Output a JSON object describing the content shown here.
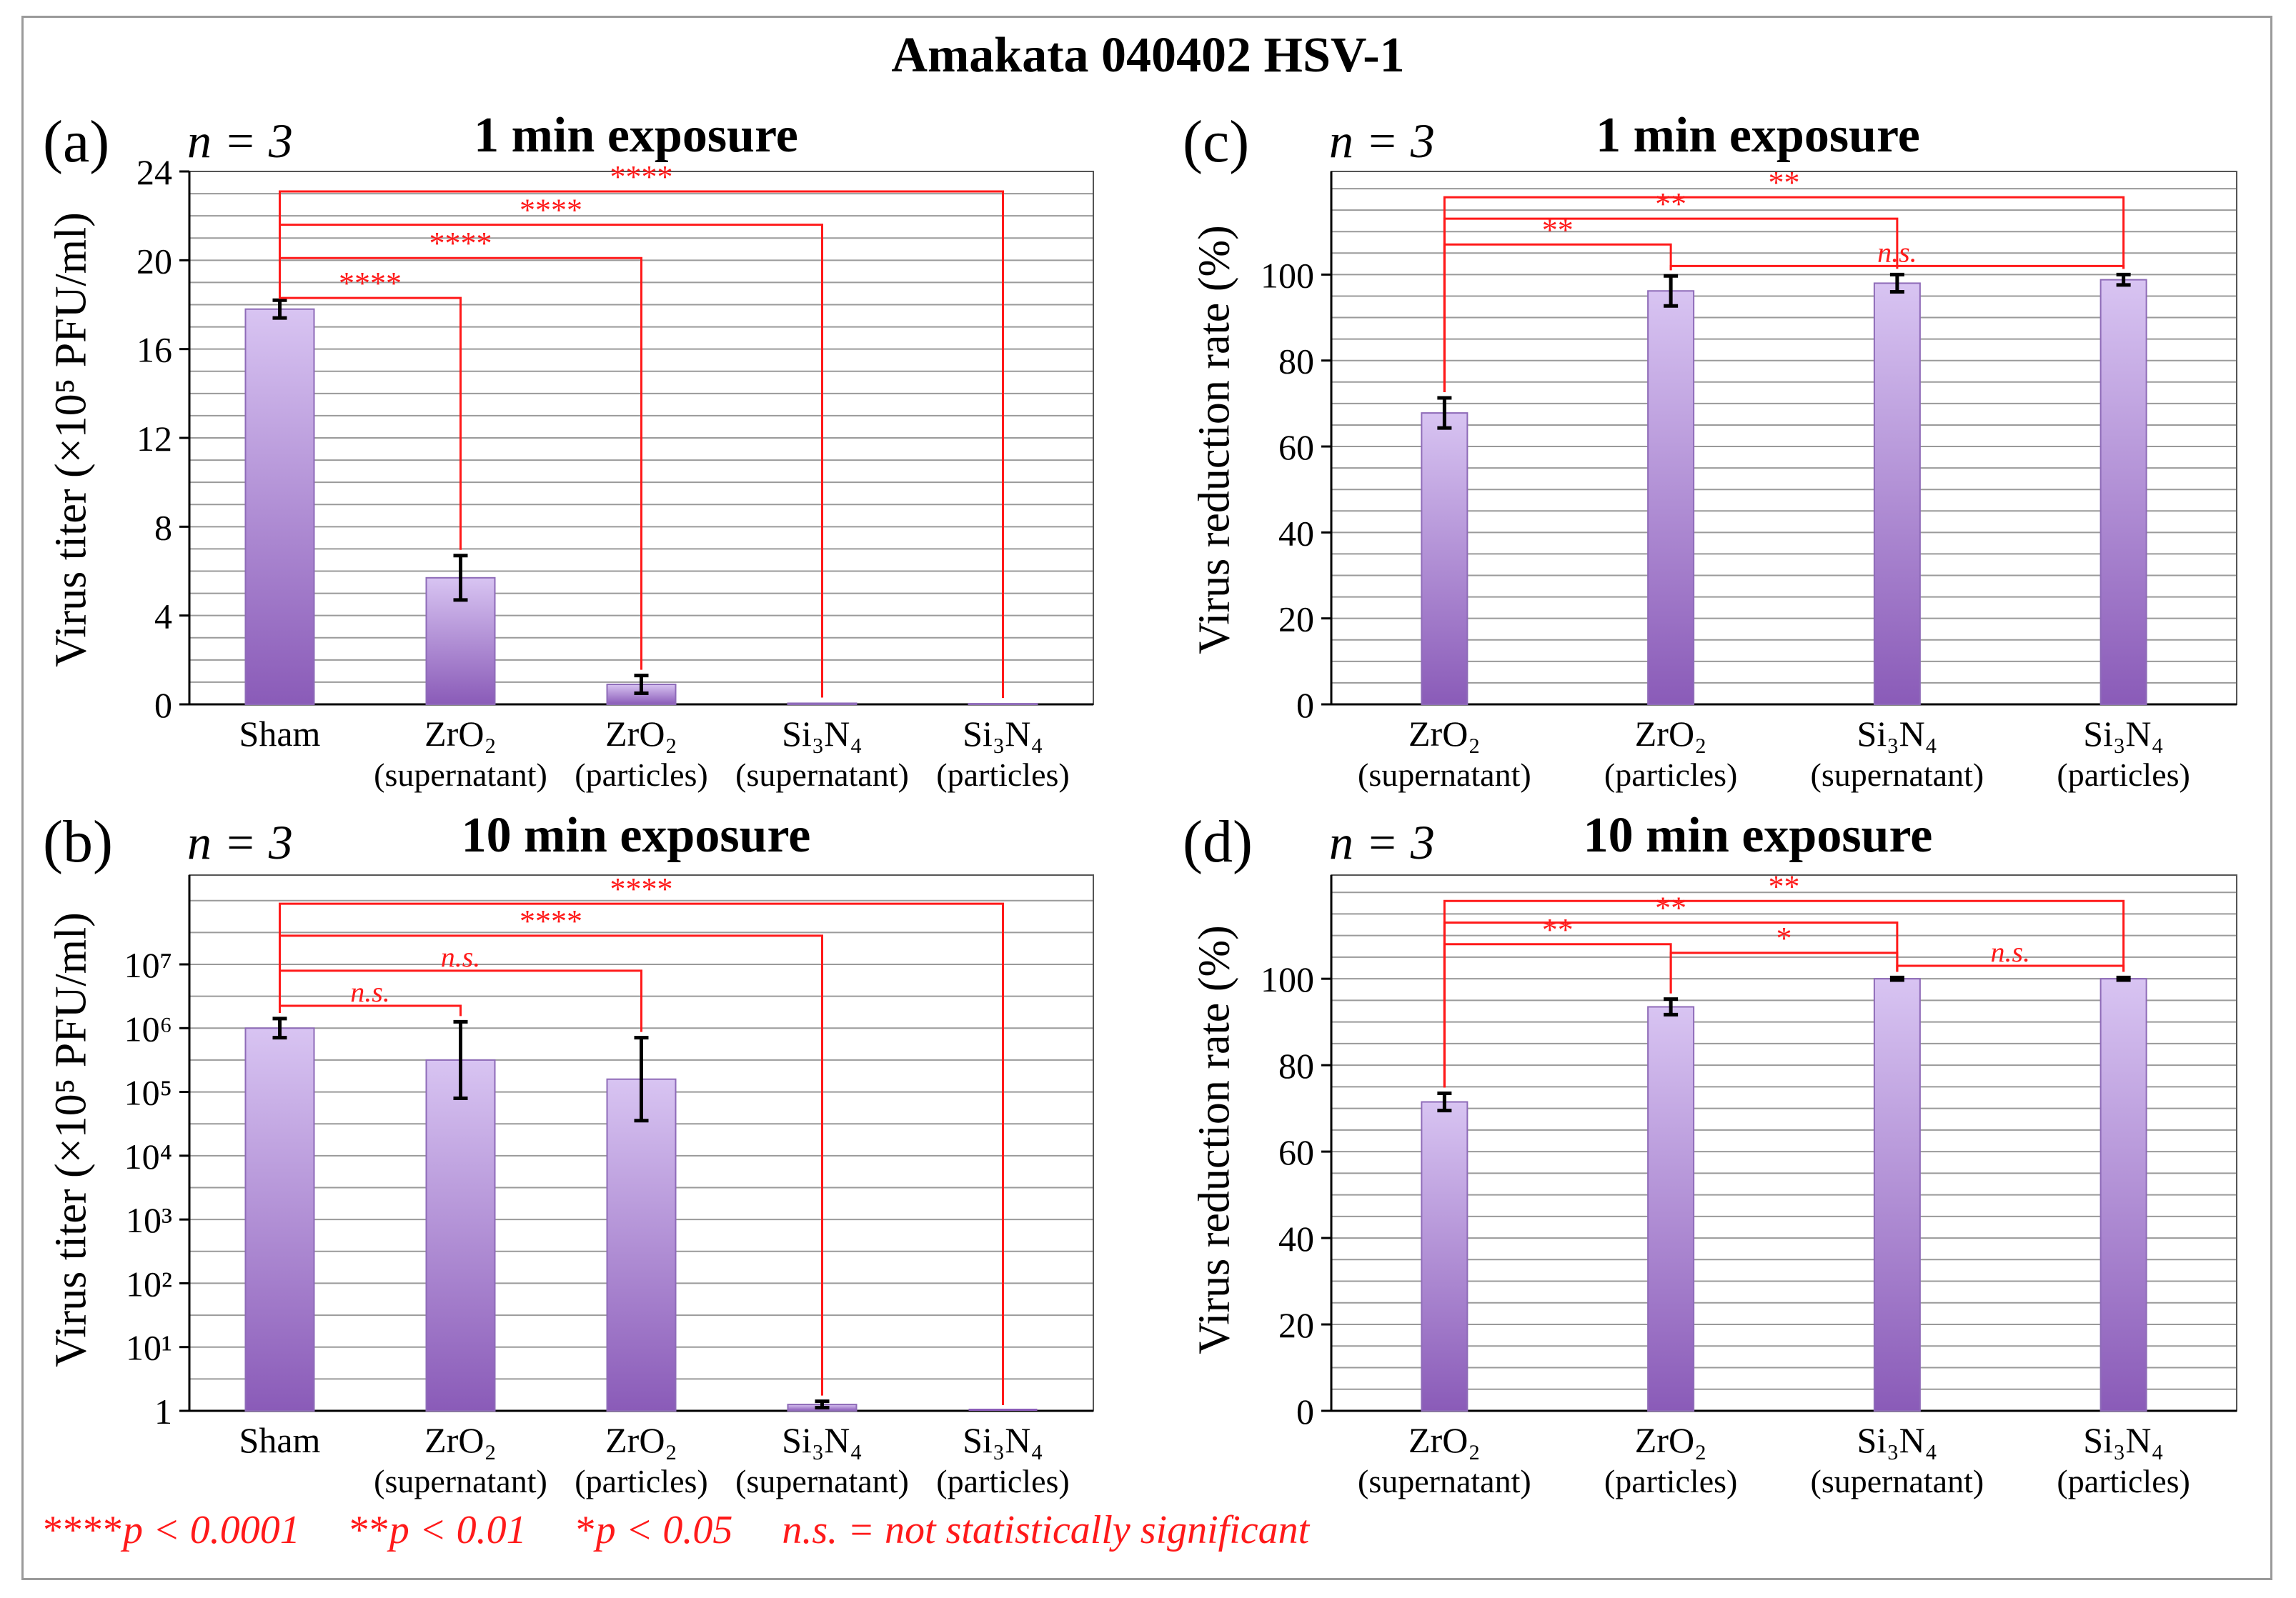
{
  "title": "Amakata 040402 HSV-1",
  "colors": {
    "bar_top": "#d8c4f2",
    "bar_bottom": "#8a5bb8",
    "bar_edge": "#8e6bb8",
    "sig": "#ff1a1a",
    "grid": "#9a9a9a",
    "axis": "#000000"
  },
  "legend": {
    "stars4": "****",
    "p4": "p < 0.0001",
    "stars2": "**",
    "p2": "p < 0.01",
    "stars1": "*",
    "p1": "p < 0.05",
    "ns": "n.s. = not statistically significant"
  },
  "chart_data": [
    {
      "id": "a",
      "panel": "(a)",
      "n": "n = 3",
      "title": "1 min exposure",
      "type": "bar",
      "ylabel": "Virus titer (×10⁵ PFU/ml)",
      "scale": "linear",
      "ylim": [
        0,
        24
      ],
      "grid_step": 1,
      "yticks": [
        0,
        4,
        8,
        12,
        16,
        20,
        24
      ],
      "ytick_labels": [
        "0",
        "4",
        "8",
        "12",
        "16",
        "20",
        "24"
      ],
      "categories": [
        [
          "Sham",
          ""
        ],
        [
          "ZrO₂",
          "(supernatant)"
        ],
        [
          "ZrO₂",
          "(particles)"
        ],
        [
          "Si₃N₄",
          "(supernatant)"
        ],
        [
          "Si₃N₄",
          "(particles)"
        ]
      ],
      "values": [
        17.8,
        5.7,
        0.9,
        0.05,
        0.03
      ],
      "errors": [
        0.4,
        1.0,
        0.4,
        0,
        0
      ],
      "significance": [
        {
          "from": 0,
          "to": 1,
          "y": 18.3,
          "label": "****"
        },
        {
          "from": 0,
          "to": 2,
          "y": 20.1,
          "label": "****"
        },
        {
          "from": 0,
          "to": 3,
          "y": 21.6,
          "label": "****"
        },
        {
          "from": 0,
          "to": 4,
          "y": 23.1,
          "label": "****"
        }
      ]
    },
    {
      "id": "b",
      "panel": "(b)",
      "n": "n = 3",
      "title": "10 min exposure",
      "type": "bar",
      "ylabel": "Virus titer (×10⁵ PFU/ml)",
      "scale": "log",
      "ylim": [
        0,
        8.4
      ],
      "grid_step": 0.5,
      "yticks": [
        0,
        1,
        2,
        3,
        4,
        5,
        6,
        7
      ],
      "ytick_labels": [
        "1",
        "10¹",
        "10²",
        "10³",
        "10⁴",
        "10⁵",
        "10⁶",
        "10⁷"
      ],
      "categories": [
        [
          "Sham",
          ""
        ],
        [
          "ZrO₂",
          "(supernatant)"
        ],
        [
          "ZrO₂",
          "(particles)"
        ],
        [
          "Si₃N₄",
          "(supernatant)"
        ],
        [
          "Si₃N₄",
          "(particles)"
        ]
      ],
      "values": [
        6.0,
        5.5,
        5.2,
        0.1,
        0
      ],
      "errors": [
        0.15,
        0.6,
        0.65,
        0.05,
        0
      ],
      "significance": [
        {
          "from": 0,
          "to": 1,
          "y": 6.35,
          "label": "n.s.",
          "italic": true
        },
        {
          "from": 0,
          "to": 2,
          "y": 6.9,
          "label": "n.s.",
          "italic": true
        },
        {
          "from": 0,
          "to": 3,
          "y": 7.45,
          "label": "****"
        },
        {
          "from": 0,
          "to": 4,
          "y": 7.95,
          "label": "****"
        }
      ]
    },
    {
      "id": "c",
      "panel": "(c)",
      "n": "n = 3",
      "title": "1 min exposure",
      "type": "bar",
      "ylabel": "Virus reduction rate (%)",
      "scale": "linear",
      "ylim": [
        0,
        124
      ],
      "grid_step": 5,
      "yticks": [
        0,
        20,
        40,
        60,
        80,
        100
      ],
      "ytick_labels": [
        "0",
        "20",
        "40",
        "60",
        "80",
        "100"
      ],
      "categories": [
        [
          "ZrO₂",
          "(supernatant)"
        ],
        [
          "ZrO₂",
          "(particles)"
        ],
        [
          "Si₃N₄",
          "(supernatant)"
        ],
        [
          "Si₃N₄",
          "(particles)"
        ]
      ],
      "values": [
        67.8,
        96.2,
        98.0,
        98.8
      ],
      "errors": [
        3.5,
        3.5,
        2.0,
        1.2
      ],
      "significance": [
        {
          "from": 0,
          "to": 1,
          "y": 107,
          "label": "**"
        },
        {
          "from": 1,
          "to": 3,
          "y": 102,
          "label": "n.s.",
          "italic": true
        },
        {
          "from": 0,
          "to": 2,
          "y": 113,
          "label": "**"
        },
        {
          "from": 0,
          "to": 3,
          "y": 118,
          "label": "**"
        }
      ]
    },
    {
      "id": "d",
      "panel": "(d)",
      "n": "n = 3",
      "title": "10 min exposure",
      "type": "bar",
      "ylabel": "Virus reduction rate (%)",
      "scale": "linear",
      "ylim": [
        0,
        124
      ],
      "grid_step": 5,
      "yticks": [
        0,
        20,
        40,
        60,
        80,
        100
      ],
      "ytick_labels": [
        "0",
        "20",
        "40",
        "60",
        "80",
        "100"
      ],
      "categories": [
        [
          "ZrO₂",
          "(supernatant)"
        ],
        [
          "ZrO₂",
          "(particles)"
        ],
        [
          "Si₃N₄",
          "(supernatant)"
        ],
        [
          "Si₃N₄",
          "(particles)"
        ]
      ],
      "values": [
        71.5,
        93.5,
        100,
        100
      ],
      "errors": [
        2.0,
        1.8,
        0.3,
        0.3
      ],
      "significance": [
        {
          "from": 0,
          "to": 1,
          "y": 108,
          "label": "**"
        },
        {
          "from": 1,
          "to": 2,
          "y": 106,
          "label": "*"
        },
        {
          "from": 2,
          "to": 3,
          "y": 103,
          "label": "n.s.",
          "italic": true
        },
        {
          "from": 0,
          "to": 2,
          "y": 113,
          "label": "**"
        },
        {
          "from": 0,
          "to": 3,
          "y": 118,
          "label": "**"
        }
      ]
    }
  ]
}
